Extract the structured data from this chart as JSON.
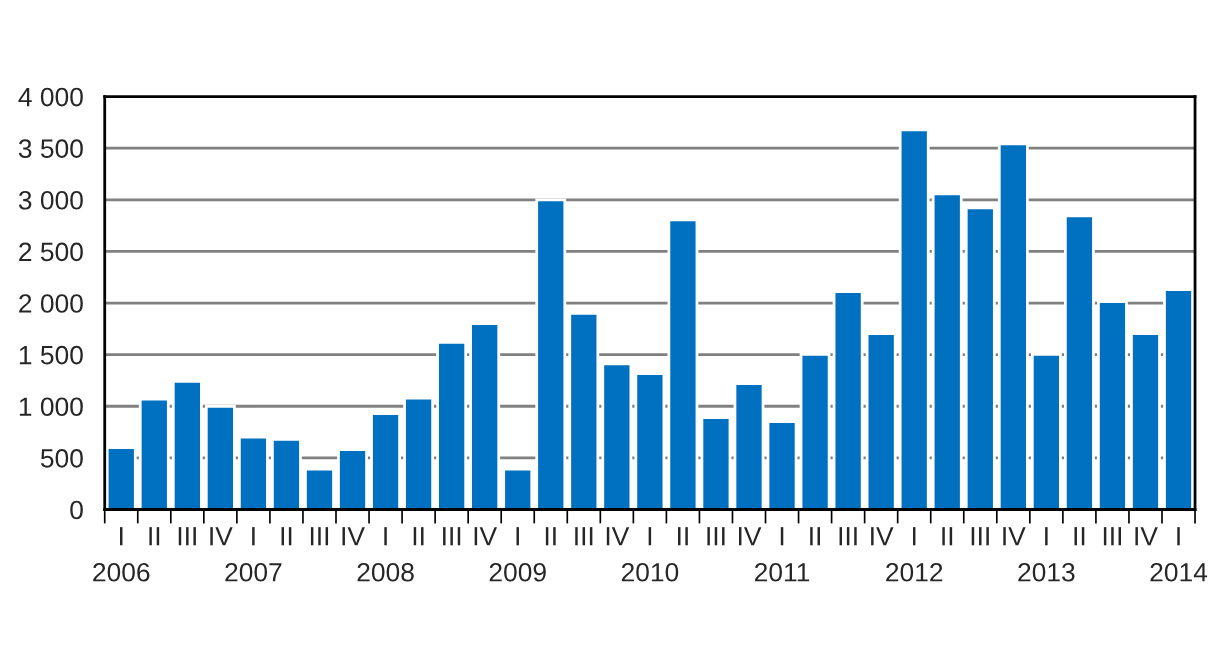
{
  "chart_data": {
    "type": "bar",
    "categories": [
      "I\n2006",
      "II",
      "III",
      "IV",
      "I\n2007",
      "II",
      "III",
      "IV",
      "I\n2008",
      "II",
      "III",
      "IV",
      "I\n2009",
      "II",
      "III",
      "IV",
      "I\n2010",
      "II",
      "III",
      "IV",
      "I\n2011",
      "II",
      "III",
      "IV",
      "I\n2012",
      "II",
      "III",
      "IV",
      "I\n2013",
      "II",
      "III",
      "IV",
      "I\n2014"
    ],
    "values": [
      600,
      1070,
      1240,
      1000,
      700,
      680,
      390,
      580,
      930,
      1080,
      1620,
      1800,
      390,
      3000,
      1900,
      1410,
      1316,
      2806,
      890,
      1219,
      852,
      1503,
      2110,
      1703,
      3677,
      3058,
      2923,
      3542,
      1503,
      2845,
      2013,
      1703,
      2129
    ],
    "color": "#0070c0",
    "ylim": [
      0,
      4000
    ],
    "yticks": [
      0,
      500,
      {
        "value": 1000,
        "label": "1 000"
      },
      {
        "value": 1500,
        "label": "1 500"
      },
      {
        "value": 2000,
        "label": "2 000"
      },
      {
        "value": 2500,
        "label": "2 500"
      },
      {
        "value": 3000,
        "label": "3 000"
      },
      {
        "value": 3500,
        "label": "3 500"
      },
      {
        "value": 4000,
        "label": "4 000"
      }
    ],
    "grid": "y"
  }
}
